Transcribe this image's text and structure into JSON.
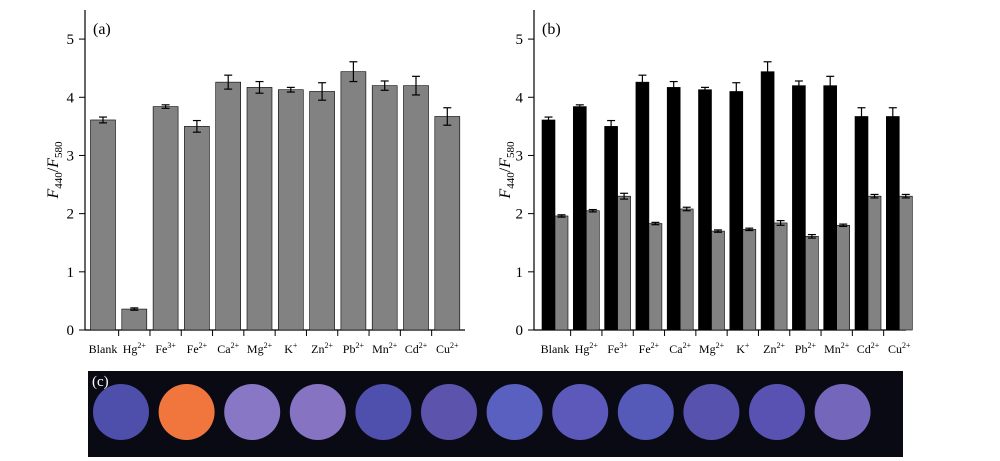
{
  "panel_labels": {
    "a": "(a)",
    "b": "(b)",
    "c": "(c)"
  },
  "ylabel": {
    "f": "F",
    "num": "440",
    "slash": "/",
    "den": "580"
  },
  "colors": {
    "gray_bar": "#828282",
    "black_bar": "#000000",
    "photo_bg": "#0a0a14",
    "wells": [
      "#4d4faa",
      "#f0763e",
      "#8777c4",
      "#8674c2",
      "#4f50ad",
      "#5c53ac",
      "#5a60c0",
      "#5c59ba",
      "#5559b8",
      "#5752ae",
      "#5a52b2",
      "#7466bb"
    ]
  },
  "chart_data": [
    {
      "type": "bar",
      "panel": "(a)",
      "categories": [
        "Blank",
        "Hg²⁺",
        "Fe³⁺",
        "Fe²⁺",
        "Ca²⁺",
        "Mg²⁺",
        "K⁺",
        "Zn²⁺",
        "Pb²⁺",
        "Mn²⁺",
        "Cd²⁺",
        "Cu²⁺"
      ],
      "ylim": [
        0,
        5.5
      ],
      "yticks": [
        "0",
        "1",
        "2",
        "3",
        "4",
        "5"
      ],
      "series": [
        {
          "values": [
            3.61,
            0.36,
            3.84,
            3.5,
            4.26,
            4.17,
            4.13,
            4.1,
            4.44,
            4.2,
            4.2,
            3.67
          ],
          "errors": [
            0.05,
            0.02,
            0.03,
            0.1,
            0.12,
            0.1,
            0.04,
            0.15,
            0.17,
            0.08,
            0.16,
            0.15
          ]
        }
      ]
    },
    {
      "type": "bar",
      "panel": "(b)",
      "categories": [
        "Blank",
        "Hg²⁺",
        "Fe³⁺",
        "Fe²⁺",
        "Ca²⁺",
        "Mg²⁺",
        "K⁺",
        "Zn²⁺",
        "Pb²⁺",
        "Mn²⁺",
        "Cd²⁺",
        "Cu²⁺"
      ],
      "ylim": [
        0,
        5.5
      ],
      "yticks": [
        "0",
        "1",
        "2",
        "3",
        "4",
        "5"
      ],
      "series": [
        {
          "values": [
            3.61,
            3.84,
            3.5,
            4.26,
            4.17,
            4.13,
            4.1,
            4.44,
            4.2,
            4.2,
            3.67,
            3.67
          ],
          "errors": [
            0.05,
            0.03,
            0.1,
            0.12,
            0.1,
            0.04,
            0.15,
            0.17,
            0.08,
            0.16,
            0.15,
            0.15
          ]
        },
        {
          "values": [
            1.96,
            2.05,
            2.3,
            1.83,
            2.08,
            1.7,
            1.73,
            1.84,
            1.61,
            1.8,
            2.3,
            2.3
          ],
          "errors": [
            0.02,
            0.02,
            0.05,
            0.02,
            0.03,
            0.02,
            0.02,
            0.04,
            0.03,
            0.02,
            0.03,
            0.03
          ]
        }
      ]
    }
  ]
}
